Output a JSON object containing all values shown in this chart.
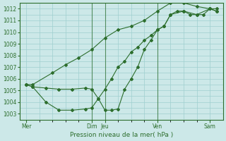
{
  "background_color": "#cce8e8",
  "grid_color": "#9fcfcf",
  "line_color": "#2d6e2d",
  "xlabel": "Pression niveau de la mer( hPa )",
  "ylim": [
    1002.5,
    1012.5
  ],
  "yticks": [
    1003,
    1004,
    1005,
    1006,
    1007,
    1008,
    1009,
    1010,
    1011,
    1012
  ],
  "day_labels": [
    "Mer",
    "Dim",
    "Jeu",
    "Ven",
    "Sam"
  ],
  "day_positions": [
    0,
    5,
    6,
    10,
    14
  ],
  "xlim": [
    -0.5,
    15.0
  ],
  "vline_positions": [
    5,
    6,
    10
  ],
  "line1_x": [
    0,
    0.5,
    1.5,
    2.5,
    3.5,
    4.5,
    5.0,
    5.5,
    6,
    6.5,
    7,
    7.5,
    8,
    8.5,
    9,
    9.5,
    10,
    10.5,
    11,
    11.5,
    12,
    12.5,
    13,
    13.5,
    14,
    14.5
  ],
  "line1_y": [
    1005.5,
    1005.3,
    1005.2,
    1005.1,
    1005.1,
    1005.2,
    1005.1,
    1004.3,
    1003.3,
    1003.3,
    1003.4,
    1005.1,
    1006.0,
    1007.0,
    1008.5,
    1009.3,
    1010.2,
    1010.5,
    1011.5,
    1011.8,
    1011.8,
    1011.5,
    1011.5,
    1011.5,
    1012.0,
    1011.8
  ],
  "line2_x": [
    0,
    0.5,
    2,
    3,
    4,
    5,
    6,
    7,
    8,
    9,
    10,
    11,
    12,
    13,
    14,
    14.5
  ],
  "line2_y": [
    1005.5,
    1005.5,
    1006.5,
    1007.2,
    1007.8,
    1008.5,
    1009.5,
    1010.2,
    1010.5,
    1011.0,
    1011.8,
    1012.5,
    1012.5,
    1012.2,
    1012.0,
    1012.0
  ],
  "line3_x": [
    0,
    0.5,
    1.5,
    2.5,
    3.5,
    4.5,
    5.0,
    5.5,
    6,
    6.5,
    7,
    7.5,
    8,
    8.5,
    9,
    9.5,
    10,
    10.5,
    11,
    12,
    13,
    14,
    14.5
  ],
  "line3_y": [
    1005.5,
    1005.3,
    1004.0,
    1003.3,
    1003.3,
    1003.4,
    1003.5,
    1004.3,
    1005.1,
    1006.0,
    1007.0,
    1007.5,
    1008.3,
    1008.7,
    1009.3,
    1009.7,
    1010.2,
    1010.5,
    1011.5,
    1011.8,
    1011.5,
    1012.0,
    1011.8
  ]
}
